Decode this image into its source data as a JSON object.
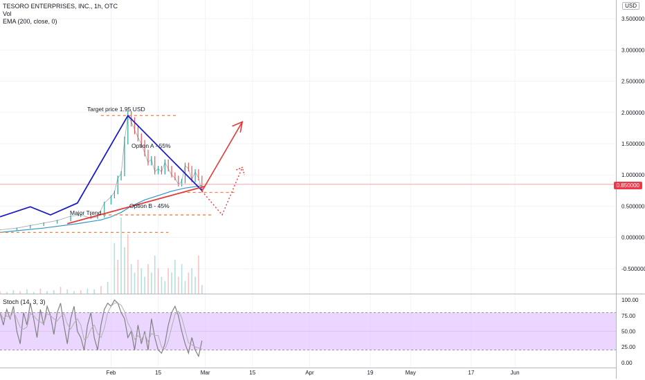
{
  "header": {
    "symbol_line": "TESORO ENTERPRISES, INC., 1h, OTC",
    "vol_label": "Vol",
    "ema_label": "EMA (200, close, 0)",
    "currency": "USD"
  },
  "last_price": "0.850000",
  "colors": {
    "up": "#26a69a",
    "down": "#ef5350",
    "annotation_red": "#e53935",
    "annotation_blue": "#1a1ac8",
    "dashed_orange": "#f57c3a",
    "ema": "#2f95c9",
    "stoch_band": "#e1c5ff",
    "stoch_line": "#808080"
  },
  "chart_data": [
    {
      "type": "line",
      "panel": "price",
      "title": "TESORO ENTERPRISES, INC., 1h, OTC",
      "y_ticks": [
        -0.5,
        0,
        0.5,
        1.0,
        1.5,
        2.0,
        2.5,
        3.0,
        3.5
      ],
      "y_tick_labels": [
        "-0.500000",
        "0.000000",
        "0.500000",
        "1.000000",
        "1.500000",
        "2.000000",
        "2.500000",
        "3.000000",
        "3.500000"
      ],
      "ylim": [
        -0.9,
        3.8
      ],
      "x_ticks": [
        "Feb",
        "15",
        "Mar",
        "15",
        "Apr",
        "19",
        "May",
        "17",
        "Jun"
      ],
      "x_tick_days": [
        0,
        14,
        28,
        42,
        59,
        77,
        89,
        107,
        120
      ],
      "xlim": [
        -33,
        150
      ],
      "series": [
        {
          "kind": "price",
          "x": [
            -33,
            -28,
            -24,
            -20,
            -16,
            -12,
            -9,
            -6,
            -4,
            -2,
            0,
            1,
            2,
            3,
            4,
            5,
            6,
            7,
            8,
            9,
            10,
            11,
            12,
            13,
            14,
            15,
            16,
            17,
            18,
            19,
            20,
            21,
            22,
            23,
            24,
            25,
            26,
            27
          ],
          "values": [
            0.12,
            0.15,
            0.19,
            0.23,
            0.27,
            0.34,
            0.36,
            0.31,
            0.33,
            0.55,
            0.65,
            0.72,
            0.95,
            1.02,
            1.55,
            1.95,
            1.85,
            1.72,
            1.6,
            1.5,
            1.35,
            1.2,
            1.25,
            1.05,
            1.1,
            1.05,
            1.2,
            1.1,
            1.0,
            0.95,
            0.85,
            0.9,
            1.15,
            1.1,
            0.92,
            1.05,
            0.95,
            0.75
          ]
        },
        {
          "kind": "ema",
          "label": "EMA (200, close, 0)",
          "x": [
            -33,
            -20,
            -10,
            -3,
            0,
            3,
            6,
            10,
            14,
            18,
            22,
            26,
            27
          ],
          "values": [
            0.08,
            0.15,
            0.22,
            0.28,
            0.33,
            0.4,
            0.5,
            0.6,
            0.67,
            0.74,
            0.79,
            0.82,
            0.83
          ]
        }
      ],
      "annotations": {
        "target_label": "Target price 1.95 USD",
        "target_level": 1.95,
        "option_a_label": "Option A - 55%",
        "option_b_label": "Option B - 45%",
        "major_trend_label": "Major Trend",
        "dashed_levels": [
          1.95,
          0.72,
          0.36,
          0.08
        ],
        "last_price_line": 0.85
      }
    },
    {
      "type": "bar",
      "panel": "volume",
      "label": "Vol",
      "x": [
        -33,
        -31,
        -29,
        -27,
        -25,
        -23,
        -21,
        -19,
        -17,
        -15,
        -13,
        -11,
        -9,
        -7,
        -5,
        -3,
        -1,
        1,
        2,
        3,
        4,
        5,
        6,
        7,
        8,
        9,
        10,
        11,
        12,
        13,
        14,
        15,
        16,
        17,
        18,
        19,
        20,
        21,
        22,
        23,
        24,
        25,
        26,
        27
      ],
      "values": [
        3,
        2,
        4,
        3,
        5,
        2,
        6,
        3,
        4,
        8,
        5,
        3,
        4,
        6,
        5,
        9,
        14,
        60,
        40,
        90,
        55,
        70,
        35,
        25,
        40,
        30,
        20,
        35,
        25,
        45,
        30,
        20,
        15,
        30,
        25,
        40,
        20,
        35,
        15,
        25,
        30,
        20,
        45,
        10
      ]
    },
    {
      "type": "line",
      "panel": "stoch",
      "label": "Stoch (14, 3, 3)",
      "y_ticks": [
        0,
        25,
        50,
        75,
        100
      ],
      "y_tick_labels": [
        "0.00",
        "25.00",
        "50.00",
        "75.00",
        "100.00"
      ],
      "ylim": [
        -8,
        108
      ],
      "band": [
        20,
        80
      ],
      "series": [
        {
          "name": "%K",
          "x": [
            -33,
            -32,
            -31,
            -30,
            -29,
            -28,
            -27,
            -26,
            -25,
            -24,
            -23,
            -22,
            -21,
            -20,
            -19,
            -18,
            -17,
            -16,
            -15,
            -14,
            -13,
            -12,
            -11,
            -10,
            -9,
            -8,
            -7,
            -6,
            -5,
            -4,
            -3,
            -2,
            -1,
            0,
            1,
            2,
            3,
            4,
            5,
            6,
            7,
            8,
            9,
            10,
            11,
            12,
            13,
            14,
            15,
            16,
            17,
            18,
            19,
            20,
            21,
            22,
            23,
            24,
            25,
            26,
            27
          ],
          "values": [
            80,
            60,
            85,
            70,
            90,
            50,
            30,
            80,
            60,
            95,
            70,
            40,
            85,
            60,
            90,
            75,
            45,
            80,
            95,
            60,
            30,
            70,
            90,
            50,
            40,
            20,
            60,
            80,
            40,
            20,
            60,
            85,
            95,
            90,
            100,
            95,
            80,
            70,
            40,
            50,
            20,
            60,
            30,
            50,
            20,
            70,
            40,
            20,
            15,
            30,
            60,
            80,
            90,
            75,
            50,
            30,
            15,
            40,
            20,
            10,
            35
          ]
        }
      ]
    }
  ]
}
